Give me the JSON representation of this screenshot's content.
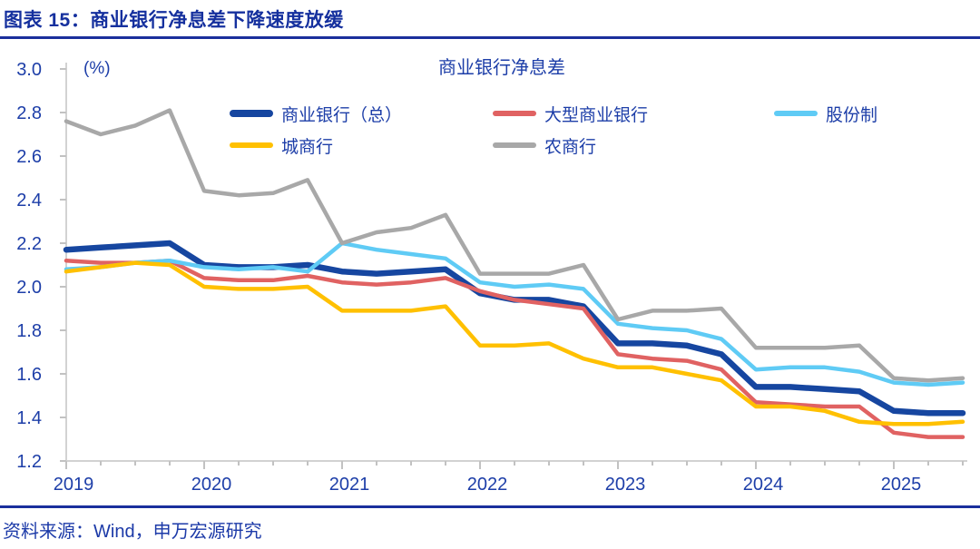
{
  "figure": {
    "title": "图表 15：商业银行净息差下降速度放缓",
    "source": "资料来源：Wind，申万宏源研究"
  },
  "chart_data": {
    "type": "line",
    "title": "商业银行净息差",
    "y_unit_label": "(%)",
    "ylim": [
      1.2,
      3.0
    ],
    "y_tick_step": 0.2,
    "y_tick_labels": [
      "1.2",
      "1.4",
      "1.6",
      "1.8",
      "2.0",
      "2.2",
      "2.4",
      "2.6",
      "2.8",
      "3.0"
    ],
    "x_years": [
      "2019",
      "2020",
      "2021",
      "2022",
      "2023",
      "2024",
      "2025"
    ],
    "grid": false,
    "legend_position": "top-inside",
    "categories": [
      "2019Q1",
      "2019Q2",
      "2019Q3",
      "2019Q4",
      "2020Q1",
      "2020Q2",
      "2020Q3",
      "2020Q4",
      "2021Q1",
      "2021Q2",
      "2021Q3",
      "2021Q4",
      "2022Q1",
      "2022Q2",
      "2022Q3",
      "2022Q4",
      "2023Q1",
      "2023Q2",
      "2023Q3",
      "2023Q4",
      "2024Q1",
      "2024Q2",
      "2024Q3",
      "2024Q4",
      "2025Q1",
      "2025Q2",
      "2025Q3"
    ],
    "series": [
      {
        "name": "商业银行（总）",
        "color": "#1646A0",
        "values": [
          2.17,
          2.18,
          2.19,
          2.2,
          2.1,
          2.09,
          2.09,
          2.1,
          2.07,
          2.06,
          2.07,
          2.08,
          1.97,
          1.94,
          1.94,
          1.91,
          1.74,
          1.74,
          1.73,
          1.69,
          1.54,
          1.54,
          1.53,
          1.52,
          1.43,
          1.42,
          1.42
        ]
      },
      {
        "name": "大型商业银行",
        "color": "#E06262",
        "values": [
          2.12,
          2.11,
          2.11,
          2.12,
          2.04,
          2.03,
          2.03,
          2.05,
          2.02,
          2.01,
          2.02,
          2.04,
          1.98,
          1.94,
          1.92,
          1.9,
          1.69,
          1.67,
          1.66,
          1.62,
          1.47,
          1.46,
          1.45,
          1.45,
          1.33,
          1.31,
          1.31
        ]
      },
      {
        "name": "股份制",
        "color": "#5FCBF5",
        "values": [
          2.08,
          2.09,
          2.11,
          2.12,
          2.09,
          2.08,
          2.09,
          2.07,
          2.2,
          2.17,
          2.15,
          2.13,
          2.02,
          2.0,
          2.01,
          1.99,
          1.83,
          1.81,
          1.8,
          1.76,
          1.62,
          1.63,
          1.63,
          1.61,
          1.56,
          1.55,
          1.56
        ]
      },
      {
        "name": "城商行",
        "color": "#FFC000",
        "values": [
          2.07,
          2.09,
          2.11,
          2.1,
          2.0,
          1.99,
          1.99,
          2.0,
          1.89,
          1.89,
          1.89,
          1.91,
          1.73,
          1.73,
          1.74,
          1.67,
          1.63,
          1.63,
          1.6,
          1.57,
          1.45,
          1.45,
          1.43,
          1.38,
          1.37,
          1.37,
          1.38
        ]
      },
      {
        "name": "农商行",
        "color": "#A8A8A8",
        "values": [
          2.76,
          2.7,
          2.74,
          2.81,
          2.44,
          2.42,
          2.43,
          2.49,
          2.2,
          2.25,
          2.27,
          2.33,
          2.06,
          2.06,
          2.06,
          2.1,
          1.85,
          1.89,
          1.89,
          1.9,
          1.72,
          1.72,
          1.72,
          1.73,
          1.58,
          1.57,
          1.58
        ]
      }
    ]
  },
  "colors": {
    "text_blue": "#1D3EA8",
    "title_blue": "#15309E",
    "divider_blue": "#1A2F9C",
    "axis_gray": "#D2D2D2",
    "tick_gray": "#C2C2C2"
  }
}
